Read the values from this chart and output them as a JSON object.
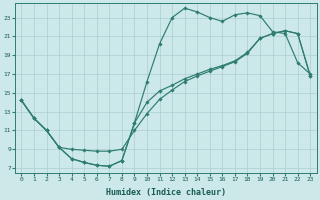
{
  "xlabel": "Humidex (Indice chaleur)",
  "bg_color": "#cce8e8",
  "line_color": "#2e7d6e",
  "grid_color": "#aacfcf",
  "xlim": [
    -0.5,
    23.5
  ],
  "ylim": [
    6.5,
    24.5
  ],
  "yticks": [
    7,
    9,
    11,
    13,
    15,
    17,
    19,
    21,
    23
  ],
  "xticks": [
    0,
    1,
    2,
    3,
    4,
    5,
    6,
    7,
    8,
    9,
    10,
    11,
    12,
    13,
    14,
    15,
    16,
    17,
    18,
    19,
    20,
    21,
    22,
    23
  ],
  "curve1_x": [
    0,
    1,
    2,
    3,
    4,
    5,
    6,
    7,
    8,
    9,
    10,
    11,
    12,
    13,
    14,
    15,
    16,
    17,
    18,
    19,
    20,
    21,
    22,
    23
  ],
  "curve1_y": [
    14.2,
    12.3,
    11.0,
    9.2,
    8.0,
    7.6,
    7.3,
    7.2,
    7.8,
    11.8,
    16.2,
    20.2,
    23.0,
    24.0,
    23.6,
    23.0,
    22.6,
    23.3,
    23.5,
    23.2,
    21.5,
    21.3,
    18.2,
    17.0
  ],
  "curve2_x": [
    0,
    1,
    2,
    3,
    4,
    5,
    6,
    7,
    8,
    9,
    10,
    11,
    12,
    13,
    14,
    15,
    16,
    17,
    18,
    19,
    20,
    21,
    22,
    23
  ],
  "curve2_y": [
    14.2,
    12.3,
    11.0,
    9.2,
    9.0,
    8.9,
    8.8,
    8.8,
    9.0,
    11.0,
    12.8,
    14.3,
    15.3,
    16.2,
    16.8,
    17.3,
    17.8,
    18.3,
    19.2,
    20.8,
    21.3,
    21.6,
    21.3,
    16.8
  ],
  "curve3_x": [
    0,
    1,
    2,
    3,
    4,
    5,
    6,
    7,
    8,
    9,
    10,
    11,
    12,
    13,
    14,
    15,
    16,
    17,
    18,
    19,
    20,
    21,
    22,
    23
  ],
  "curve3_y": [
    14.2,
    12.3,
    11.0,
    9.2,
    8.0,
    7.6,
    7.3,
    7.2,
    7.8,
    11.8,
    14.0,
    15.2,
    15.8,
    16.5,
    17.0,
    17.5,
    17.9,
    18.4,
    19.3,
    20.8,
    21.3,
    21.6,
    21.3,
    16.8
  ]
}
